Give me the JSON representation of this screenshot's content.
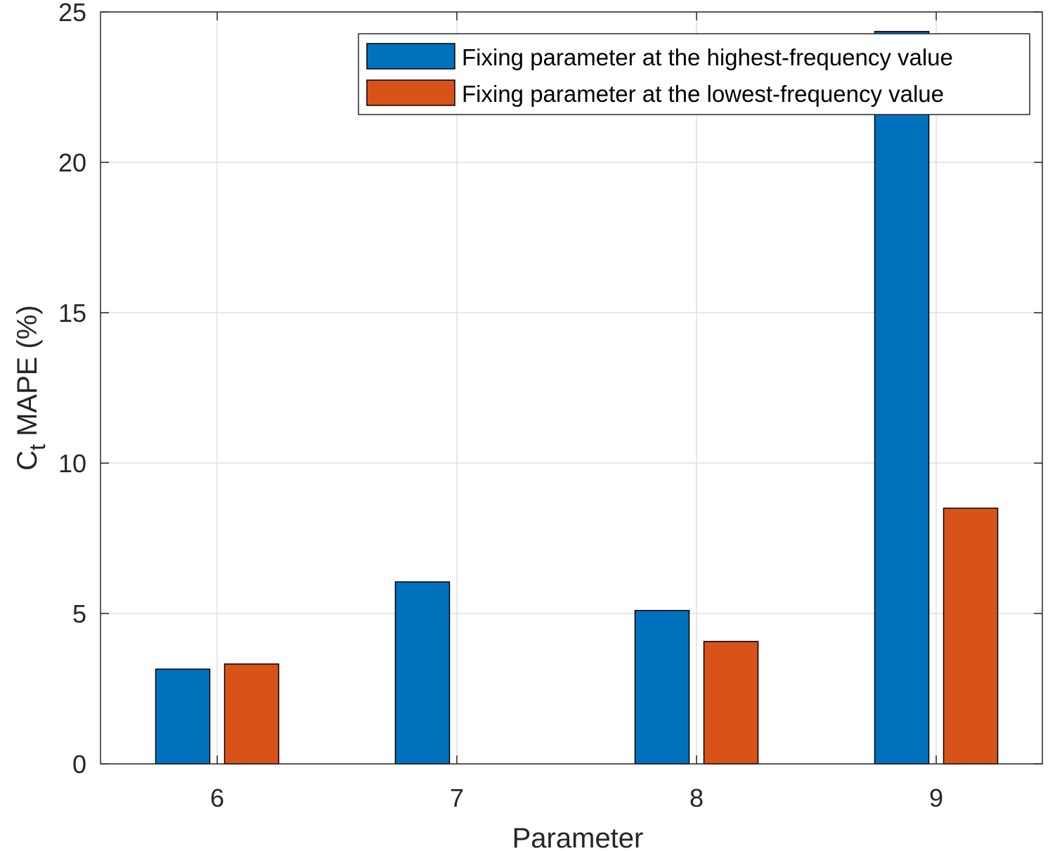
{
  "chart_data": {
    "type": "bar",
    "categories": [
      "6",
      "7",
      "8",
      "9"
    ],
    "series": [
      {
        "name": "Fixing parameter at the highest-frequency value",
        "color": "#0072bd",
        "values": [
          3.15,
          6.05,
          5.1,
          24.35
        ]
      },
      {
        "name": "Fixing parameter at the lowest-frequency value",
        "color": "#d95319",
        "values": [
          3.32,
          0,
          4.07,
          8.5
        ]
      }
    ],
    "xlabel": "Parameter",
    "ylabel": {
      "main": "C",
      "sub": "t",
      "rest": " MAPE (%)"
    },
    "ylim": [
      0,
      25
    ],
    "yticks": [
      "0",
      "5",
      "10",
      "15",
      "20",
      "25"
    ],
    "grid": true,
    "legend_position": "top-right"
  }
}
